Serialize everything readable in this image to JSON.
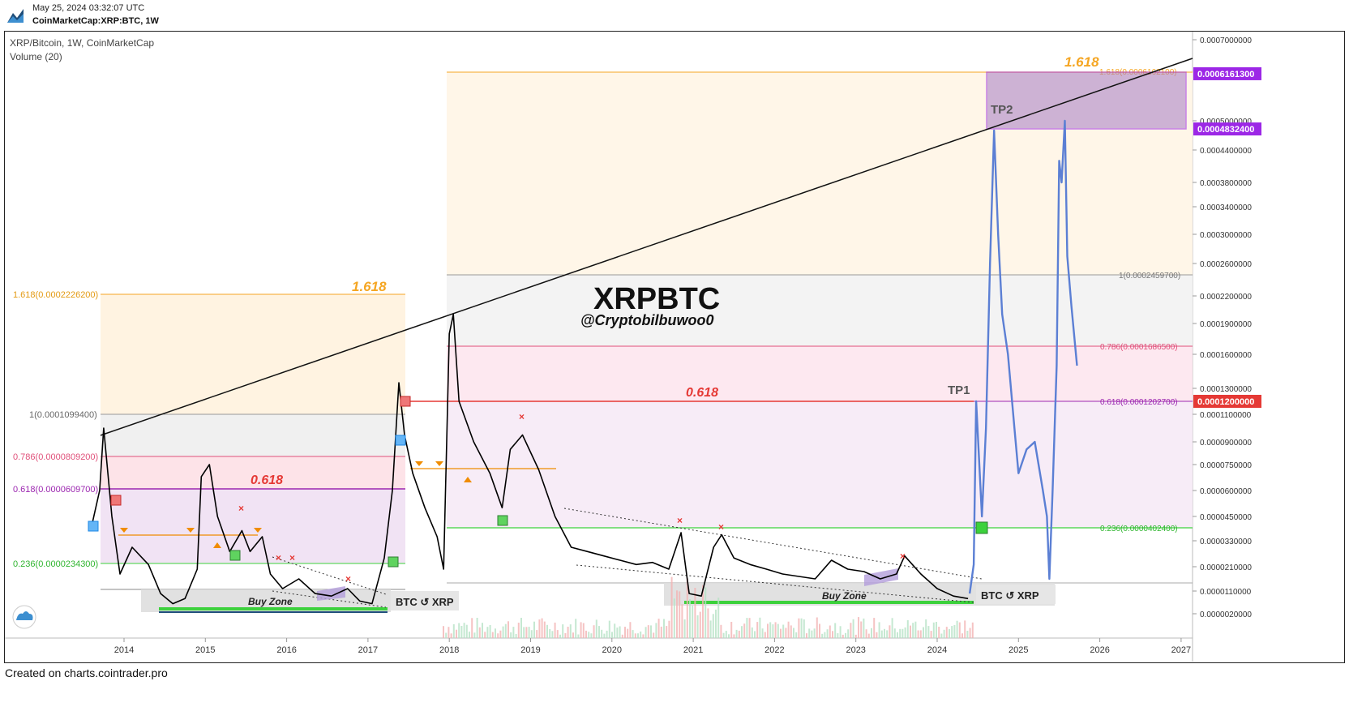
{
  "header": {
    "date": "May 25, 2024 03:32:07 UTC",
    "symbol": "CoinMarketCap:XRP:BTC, 1W"
  },
  "legend": {
    "title": "XRP/Bitcoin, 1W, CoinMarketCap",
    "volume": "Volume (20)"
  },
  "watermark": {
    "title": "XRPBTC",
    "handle": "@Cryptobilbuwoo0"
  },
  "footer": "Created on charts.cointrader.pro",
  "labels": {
    "tp1": "TP1",
    "tp2": "TP2",
    "buy_zone": "Buy Zone",
    "swap": "BTC ↺ XRP"
  },
  "fib_left": {
    "f1618": "1.618(0.0002226200)",
    "f1": "1(0.0001099400)",
    "f786": "0.786(0.0000809200)",
    "f618": "0.618(0.0000609700)",
    "f236": "0.236(0.0000234300)",
    "big1618": "1.618",
    "big618": "0.618"
  },
  "fib_right": {
    "f1618": "1.618(0.0006162100)",
    "f1": "1(0.0002459700)",
    "f786": "0.786(0.0001686500)",
    "f618": "0.618(0.0001202700)",
    "f236": "0.236(0.0000402400)",
    "big1618": "1.618",
    "big618": "0.618"
  },
  "chart_data": {
    "type": "line",
    "title": "XRP/Bitcoin, 1W, CoinMarketCap",
    "xlabel": "",
    "ylabel": "",
    "x_ticks": [
      "2014",
      "2015",
      "2016",
      "2017",
      "2018",
      "2019",
      "2020",
      "2021",
      "2022",
      "2023",
      "2024",
      "2025",
      "2026",
      "2027"
    ],
    "y_ticks": [
      "0.0007000000",
      "0.0005000000",
      "0.0004400000",
      "0.0003800000",
      "0.0003400000",
      "0.0003000000",
      "0.0002600000",
      "0.0002200000",
      "0.0001900000",
      "0.0001600000",
      "0.0001300000",
      "0.0001100000",
      "0.0000900000",
      "0.0000750000",
      "0.0000600000",
      "0.0000450000",
      "0.0000330000",
      "0.0000210000",
      "0.0000110000",
      "0.0000020000"
    ],
    "price_tags": [
      {
        "value": "0.0006161300",
        "color": "#9c27e6"
      },
      {
        "value": "0.0004832400",
        "color": "#9c27e6"
      },
      {
        "value": "0.0001200000",
        "color": "#e53935"
      }
    ],
    "series": [
      {
        "name": "",
        "color": "#000000",
        "points": [
          [
            2013.6,
            4e-05
          ],
          [
            2013.7,
            6e-05
          ],
          [
            2013.75,
            0.0001
          ],
          [
            2013.85,
            4.5e-05
          ],
          [
            2013.95,
            1.8e-05
          ],
          [
            2014.1,
            3e-05
          ],
          [
            2014.3,
            2.2e-05
          ],
          [
            2014.45,
            1e-05
          ],
          [
            2014.6,
            6e-06
          ],
          [
            2014.75,
            8e-06
          ],
          [
            2014.9,
            2e-05
          ],
          [
            2014.95,
            6.8e-05
          ],
          [
            2015.05,
            7.5e-05
          ],
          [
            2015.15,
            4.5e-05
          ],
          [
            2015.3,
            2.8e-05
          ],
          [
            2015.45,
            3.8e-05
          ],
          [
            2015.55,
            2.8e-05
          ],
          [
            2015.7,
            3.5e-05
          ],
          [
            2015.8,
            1.8e-05
          ],
          [
            2015.95,
            1.2e-05
          ],
          [
            2016.15,
            1.6e-05
          ],
          [
            2016.35,
            1e-05
          ],
          [
            2016.55,
            9e-06
          ],
          [
            2016.75,
            1.2e-05
          ],
          [
            2016.9,
            7e-06
          ],
          [
            2017.05,
            6e-06
          ],
          [
            2017.2,
            2.5e-05
          ],
          [
            2017.3,
            6e-05
          ],
          [
            2017.38,
            0.000135
          ],
          [
            2017.45,
            9.5e-05
          ],
          [
            2017.55,
            7e-05
          ],
          [
            2017.7,
            5e-05
          ],
          [
            2017.85,
            3.5e-05
          ],
          [
            2017.93,
            2e-05
          ],
          [
            2018.0,
            0.00018
          ],
          [
            2018.05,
            0.0002
          ],
          [
            2018.12,
            0.00012
          ],
          [
            2018.3,
            9e-05
          ],
          [
            2018.5,
            7e-05
          ],
          [
            2018.65,
            5e-05
          ],
          [
            2018.75,
            8.5e-05
          ],
          [
            2018.9,
            9.5e-05
          ],
          [
            2019.1,
            7.2e-05
          ],
          [
            2019.3,
            4.5e-05
          ],
          [
            2019.5,
            3e-05
          ],
          [
            2019.7,
            2.8e-05
          ],
          [
            2019.9,
            2.6e-05
          ],
          [
            2020.1,
            2.4e-05
          ],
          [
            2020.3,
            2.2e-05
          ],
          [
            2020.5,
            2.3e-05
          ],
          [
            2020.7,
            2e-05
          ],
          [
            2020.85,
            3.7e-05
          ],
          [
            2020.95,
            1e-05
          ],
          [
            2021.1,
            9e-06
          ],
          [
            2021.25,
            3e-05
          ],
          [
            2021.35,
            3.6e-05
          ],
          [
            2021.5,
            2.5e-05
          ],
          [
            2021.7,
            2.2e-05
          ],
          [
            2021.9,
            2e-05
          ],
          [
            2022.1,
            1.8e-05
          ],
          [
            2022.3,
            1.7e-05
          ],
          [
            2022.5,
            1.6e-05
          ],
          [
            2022.7,
            2.4e-05
          ],
          [
            2022.9,
            2e-05
          ],
          [
            2023.1,
            1.9e-05
          ],
          [
            2023.3,
            1.6e-05
          ],
          [
            2023.5,
            1.8e-05
          ],
          [
            2023.6,
            2.6e-05
          ],
          [
            2023.8,
            1.8e-05
          ],
          [
            2024.0,
            1.2e-05
          ],
          [
            2024.2,
            9e-06
          ],
          [
            2024.38,
            8e-06
          ]
        ]
      },
      {
        "name": "",
        "color": "#5b7fd4",
        "points": [
          [
            2024.4,
            1e-05
          ],
          [
            2024.45,
            2.2e-05
          ],
          [
            2024.48,
            0.00012
          ],
          [
            2024.55,
            4.5e-05
          ],
          [
            2024.6,
            0.0001
          ],
          [
            2024.65,
            0.00026
          ],
          [
            2024.7,
            0.00048
          ],
          [
            2024.75,
            0.0003
          ],
          [
            2024.8,
            0.0002
          ],
          [
            2024.87,
            0.00016
          ],
          [
            2024.95,
            0.0001
          ],
          [
            2025.0,
            7e-05
          ],
          [
            2025.1,
            8.5e-05
          ],
          [
            2025.2,
            9e-05
          ],
          [
            2025.3,
            6e-05
          ],
          [
            2025.35,
            4.5e-05
          ],
          [
            2025.38,
            1.6e-05
          ],
          [
            2025.42,
            6e-05
          ],
          [
            2025.47,
            0.00015
          ],
          [
            2025.5,
            0.00042
          ],
          [
            2025.53,
            0.00038
          ],
          [
            2025.57,
            0.0005
          ],
          [
            2025.6,
            0.00027
          ],
          [
            2025.65,
            0.00021
          ],
          [
            2025.72,
            0.00015
          ]
        ]
      }
    ]
  }
}
